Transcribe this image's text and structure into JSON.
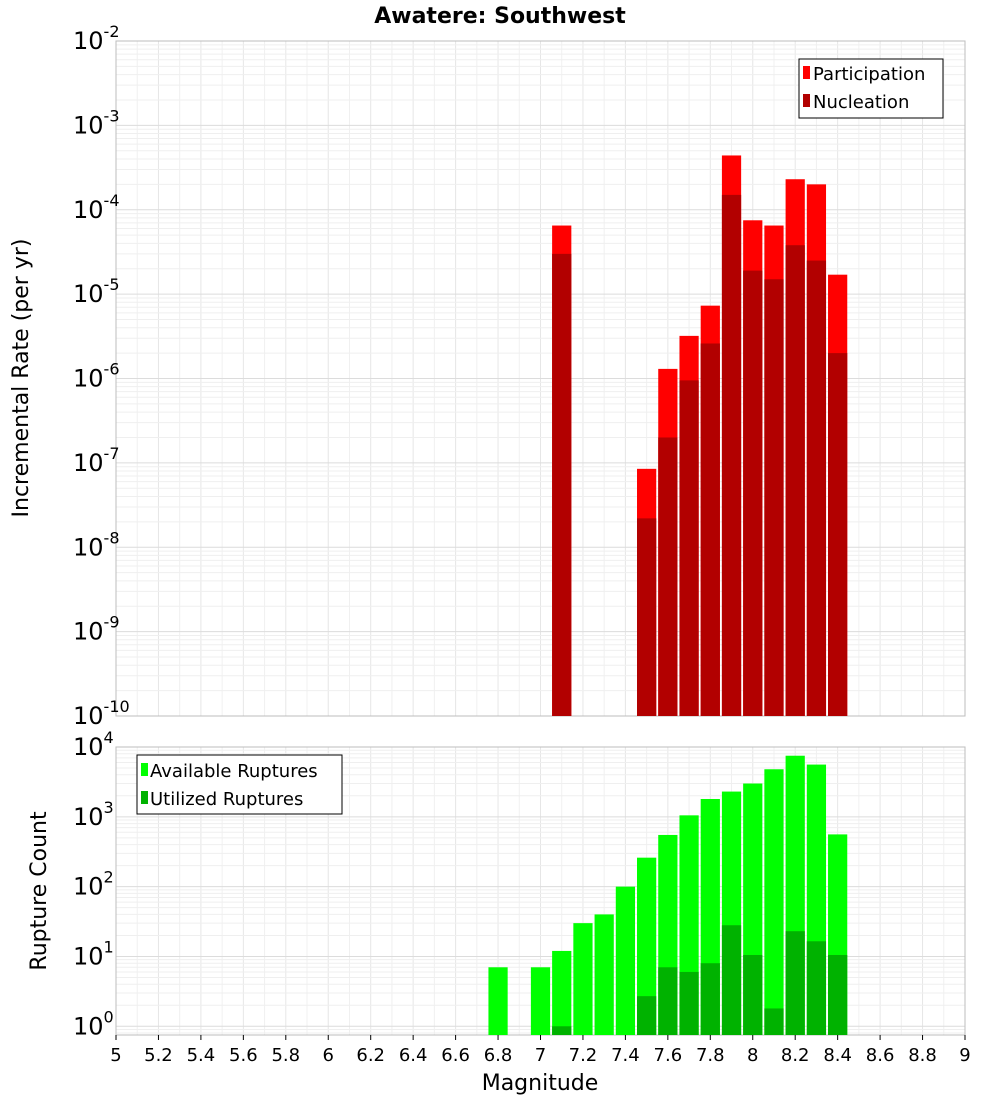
{
  "chart_data": [
    {
      "type": "bar",
      "title": "Awatere: Southwest",
      "xlabel": "",
      "ylabel": "Incremental Rate (per yr)",
      "yscale": "log",
      "ylim": [
        1e-10,
        0.01
      ],
      "xlim": [
        5,
        9
      ],
      "grid": true,
      "legend_position": "top-right",
      "bin_width": 0.1,
      "x": [
        7.1,
        7.5,
        7.6,
        7.7,
        7.8,
        7.9,
        8.0,
        8.1,
        8.2,
        8.3,
        8.4
      ],
      "series": [
        {
          "name": "Participation",
          "color": "#ff0000",
          "values": [
            6.5e-05,
            8.5e-08,
            1.3e-06,
            3.2e-06,
            7.3e-06,
            0.00044,
            7.5e-05,
            6.5e-05,
            0.00023,
            0.0002,
            1.7e-05
          ]
        },
        {
          "name": "Nucleation",
          "color": "#b20000",
          "values": [
            3e-05,
            2.2e-08,
            2e-07,
            9.5e-07,
            2.6e-06,
            0.00015,
            1.9e-05,
            1.5e-05,
            3.8e-05,
            2.5e-05,
            2e-06
          ]
        }
      ]
    },
    {
      "type": "bar",
      "title": "",
      "xlabel": "Magnitude",
      "ylabel": "Rupture Count",
      "yscale": "log",
      "ylim": [
        0.75,
        10000
      ],
      "xlim": [
        5,
        9
      ],
      "grid": true,
      "legend_position": "top-left",
      "bin_width": 0.1,
      "x": [
        6.8,
        7.0,
        7.1,
        7.2,
        7.3,
        7.4,
        7.5,
        7.6,
        7.7,
        7.8,
        7.9,
        8.0,
        8.1,
        8.2,
        8.3,
        8.4
      ],
      "series": [
        {
          "name": "Available Ruptures",
          "color": "#00ff00",
          "values": [
            7,
            7,
            12,
            30,
            40,
            100,
            260,
            550,
            1050,
            1800,
            2300,
            3000,
            4800,
            7500,
            5600,
            560
          ]
        },
        {
          "name": "Utilized Ruptures",
          "color": "#00b200",
          "values": [
            0,
            0,
            1,
            0,
            0,
            0,
            2.7,
            7,
            6,
            8,
            28,
            10.5,
            1.8,
            23,
            16.5,
            10.5
          ]
        }
      ]
    }
  ],
  "x_ticks": [
    "5",
    "5.2",
    "5.4",
    "5.6",
    "5.8",
    "6",
    "6.2",
    "6.4",
    "6.6",
    "6.8",
    "7",
    "7.2",
    "7.4",
    "7.6",
    "7.8",
    "8",
    "8.2",
    "8.4",
    "8.6",
    "8.8",
    "9"
  ],
  "top_y_ticks": [
    {
      "base": "10",
      "exp": "-2",
      "value": 0.01
    },
    {
      "base": "10",
      "exp": "-3",
      "value": 0.001
    },
    {
      "base": "10",
      "exp": "-4",
      "value": 0.0001
    },
    {
      "base": "10",
      "exp": "-5",
      "value": 1e-05
    },
    {
      "base": "10",
      "exp": "-6",
      "value": 1e-06
    },
    {
      "base": "10",
      "exp": "-7",
      "value": 1e-07
    },
    {
      "base": "10",
      "exp": "-8",
      "value": 1e-08
    },
    {
      "base": "10",
      "exp": "-9",
      "value": 1e-09
    },
    {
      "base": "10",
      "exp": "-10",
      "value": 1e-10
    }
  ],
  "bottom_y_ticks": [
    {
      "base": "10",
      "exp": "4",
      "value": 10000.0
    },
    {
      "base": "10",
      "exp": "3",
      "value": 1000.0
    },
    {
      "base": "10",
      "exp": "2",
      "value": 100.0
    },
    {
      "base": "10",
      "exp": "1",
      "value": 10.0
    },
    {
      "base": "10",
      "exp": "0",
      "value": 1.0
    }
  ]
}
